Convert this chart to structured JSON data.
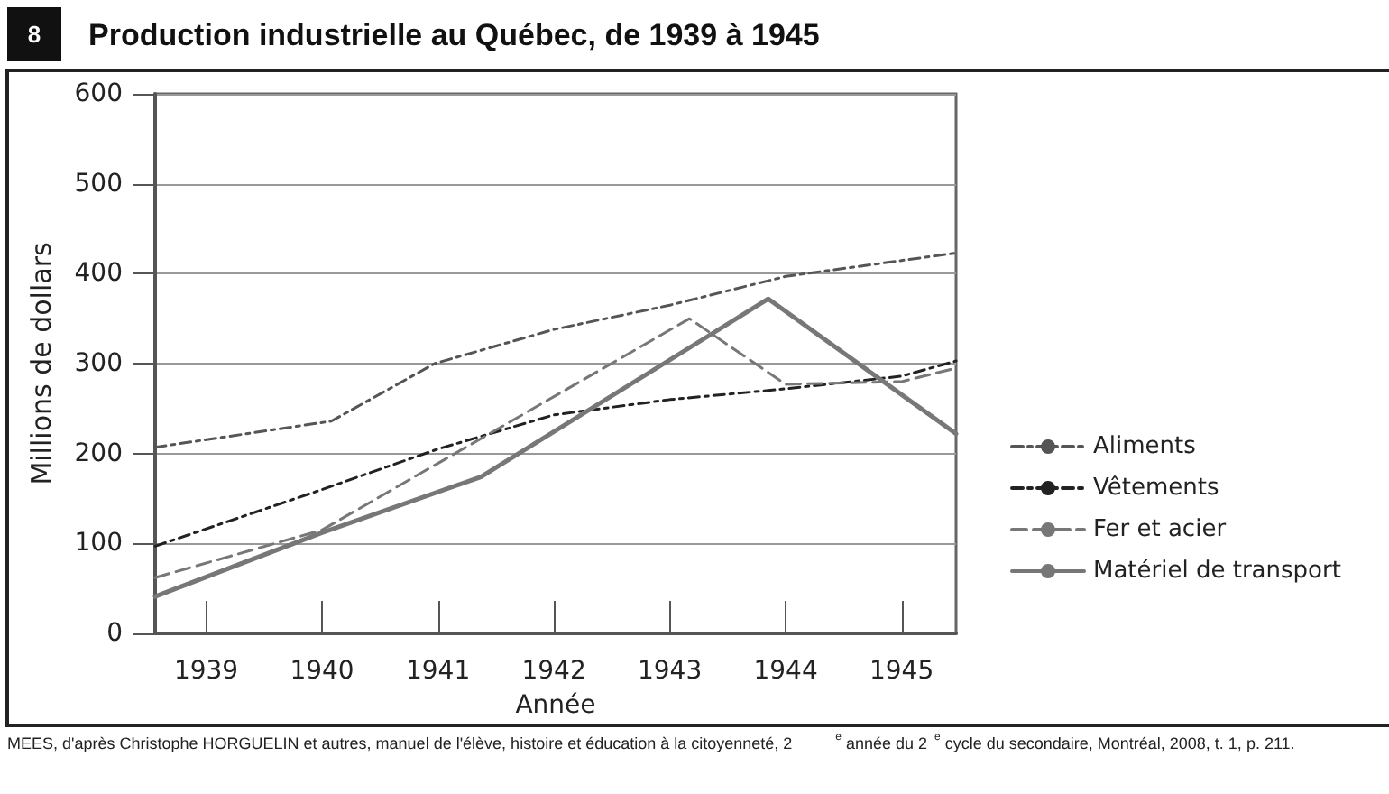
{
  "chart_data": {
    "type": "line",
    "title": "Production industrielle au Québec, de 1939 à 1945",
    "xlabel": "Année",
    "ylabel": "Millions de dollars",
    "annotations": [
      "8",
      "MEES, d'après Christophe HORGUELIN et autres, manuel de l'élève, histoire et éducation à la citoyenneté, 2$^{e}$ année du 2$^{e}$ cycle du secondaire, Montréal, 2008, t. 1, p. 211."
    ],
    "xlim": [
      1938.56,
      1945.47
    ],
    "xticks": [
      1939,
      1940,
      1941,
      1942,
      1943,
      1944,
      1945
    ],
    "ylim": [
      0,
      600
    ],
    "yticks": [
      0,
      100,
      200,
      300,
      400,
      500,
      600
    ],
    "grid": "y",
    "legend": "right",
    "marker": "none",
    "series": [
      {
        "name": "Aliments",
        "color": "#555555",
        "line_style": "dotted",
        "x": [
          1938.56,
          1940.08,
          1940.97,
          1942,
          1943,
          1944,
          1945.47
        ],
        "values": [
          207,
          236,
          300,
          338,
          365,
          397,
          423
        ]
      },
      {
        "name": "Vêtements",
        "color": "#222222",
        "line_style": "dotted",
        "x": [
          1938.56,
          1940,
          1941,
          1942,
          1943,
          1944,
          1945,
          1945.47
        ],
        "values": [
          97,
          160,
          205,
          243,
          260,
          272,
          286,
          303
        ]
      },
      {
        "name": "Fer et acier",
        "color": "#777777",
        "line_style": "dashed",
        "x": [
          1938.56,
          1940,
          1943.17,
          1944,
          1945,
          1945.47
        ],
        "values": [
          62,
          115,
          350,
          277,
          280,
          295
        ]
      },
      {
        "name": "Matériel de transport",
        "color": "#777777",
        "line_style": "solid",
        "x": [
          1938.56,
          1940,
          1941.37,
          1943.85,
          1945.47
        ],
        "values": [
          41,
          112,
          174,
          372,
          222
        ]
      }
    ]
  }
}
